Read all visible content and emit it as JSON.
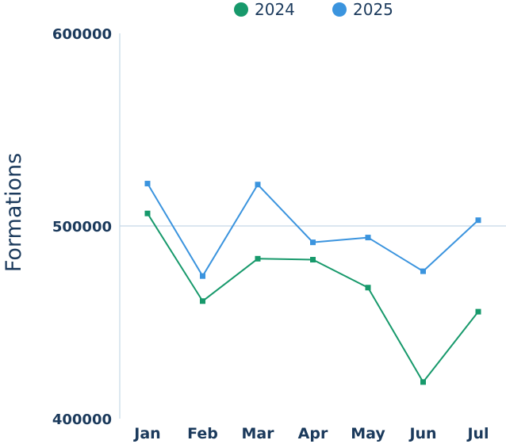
{
  "chart_data": {
    "type": "line",
    "categories": [
      "Jan",
      "Feb",
      "Mar",
      "Apr",
      "May",
      "Jun",
      "Jul"
    ],
    "series": [
      {
        "name": "2024",
        "color": "#17996b",
        "values": [
          506500,
          461000,
          483000,
          482500,
          468000,
          419000,
          455500
        ]
      },
      {
        "name": "2025",
        "color": "#3b94de",
        "values": [
          522000,
          474000,
          521500,
          491500,
          494000,
          476500,
          503000
        ]
      }
    ],
    "title": "",
    "xlabel": "",
    "ylabel": "Formations",
    "ylim": [
      400000,
      600000
    ],
    "yticks": [
      400000,
      500000,
      600000
    ],
    "ytick_labels": [
      "400000",
      "500000",
      "600000"
    ],
    "grid": "horizontal at 500000",
    "legend": "top-center",
    "axis_color": "#c5d8e6",
    "text_color": "#1b3a5c"
  }
}
